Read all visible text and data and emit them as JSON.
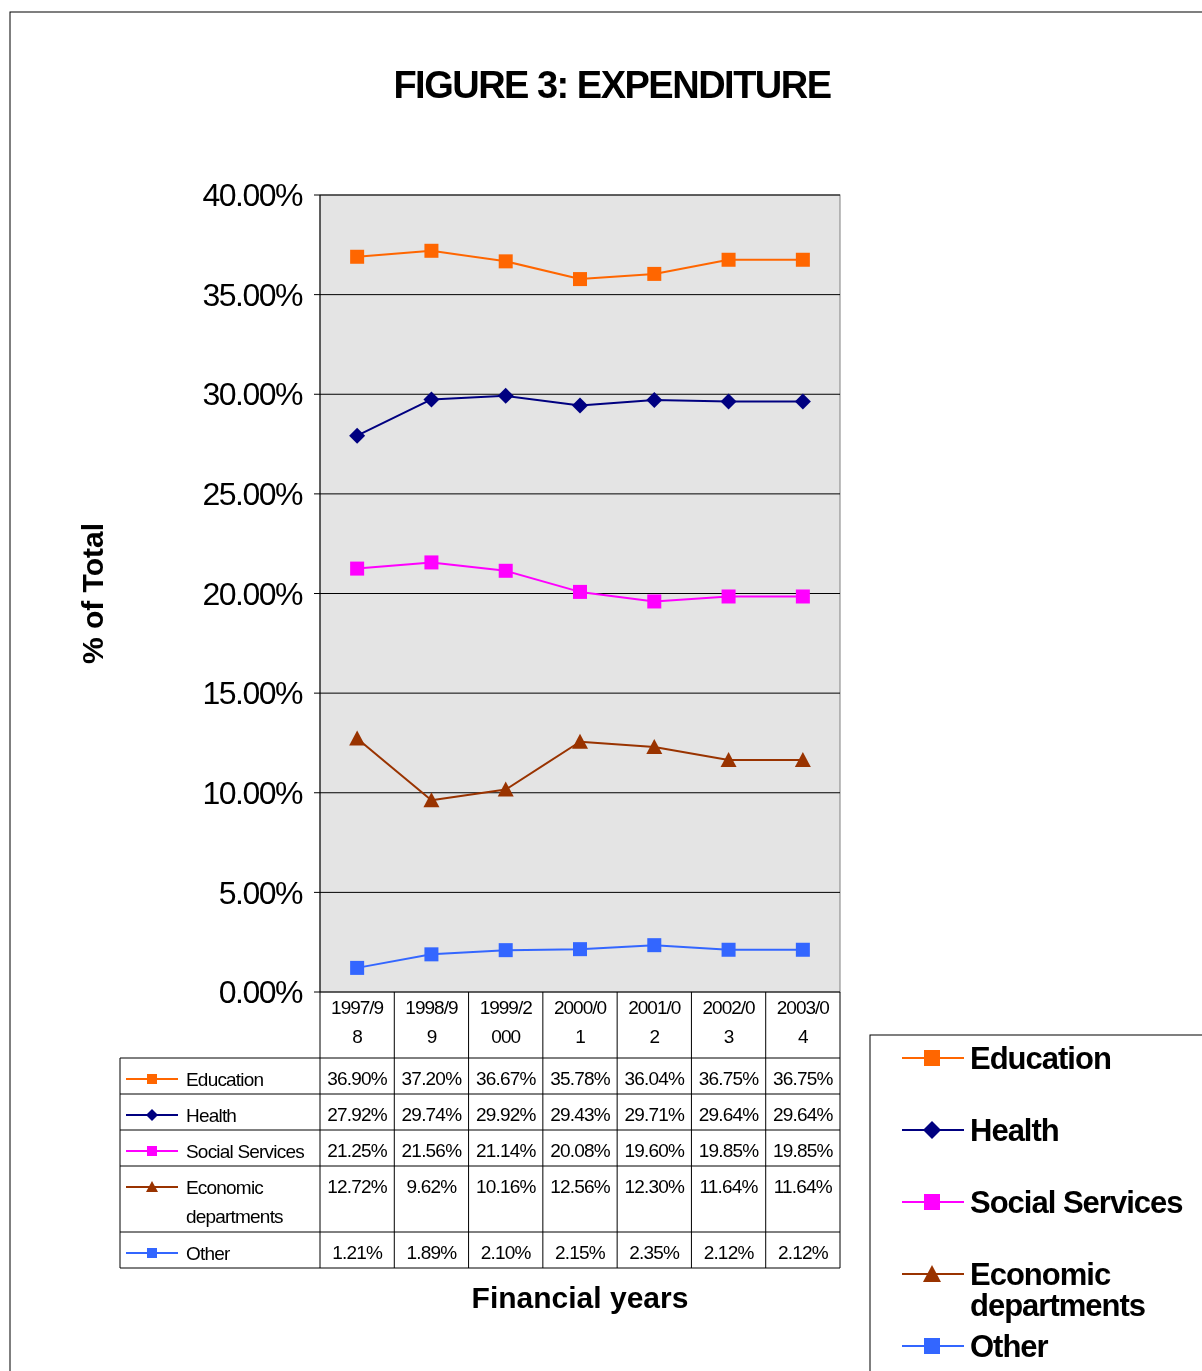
{
  "chart_data": {
    "type": "line",
    "title": "FIGURE 3:  EXPENDITURE",
    "annotations": [
      "Financial years"
    ],
    "ylabel": "% of Total",
    "categories": [
      "1997/98",
      "1998/99",
      "1999/2000",
      "2000/01",
      "2001/02",
      "2002/03",
      "2003/04"
    ],
    "series": [
      {
        "name": "Education",
        "color": "#ff6600",
        "marker": "square",
        "values": [
          36.9,
          37.2,
          36.67,
          35.78,
          36.04,
          36.75,
          36.75
        ],
        "value_labels": [
          "36.90%",
          "37.20%",
          "36.67%",
          "35.78%",
          "36.04%",
          "36.75%",
          "36.75%"
        ]
      },
      {
        "name": "Health",
        "color": "#000080",
        "marker": "diamond",
        "values": [
          27.92,
          29.74,
          29.92,
          29.43,
          29.71,
          29.64,
          29.64
        ],
        "value_labels": [
          "27.92%",
          "29.74%",
          "29.92%",
          "29.43%",
          "29.71%",
          "29.64%",
          "29.64%"
        ]
      },
      {
        "name": "Social Services",
        "color": "#ff00ff",
        "marker": "square",
        "values": [
          21.25,
          21.56,
          21.14,
          20.08,
          19.6,
          19.85,
          19.85
        ],
        "value_labels": [
          "21.25%",
          "21.56%",
          "21.14%",
          "20.08%",
          "19.60%",
          "19.85%",
          "19.85%"
        ]
      },
      {
        "name": "Economic departments",
        "color": "#993300",
        "marker": "triangle",
        "values": [
          12.72,
          9.62,
          10.16,
          12.56,
          12.3,
          11.64,
          11.64
        ],
        "value_labels": [
          "12.72%",
          "9.62%",
          "10.16%",
          "12.56%",
          "12.30%",
          "11.64%",
          "11.64%"
        ]
      },
      {
        "name": "Other",
        "color": "#3366ff",
        "marker": "square",
        "values": [
          1.21,
          1.89,
          2.1,
          2.15,
          2.35,
          2.12,
          2.12
        ],
        "value_labels": [
          "1.21%",
          "1.89%",
          "2.10%",
          "2.15%",
          "2.35%",
          "2.12%",
          "2.12%"
        ]
      }
    ],
    "ylim": [
      0,
      40
    ],
    "yticks": [
      {
        "value": 0,
        "label": "0.00%"
      },
      {
        "value": 5,
        "label": "5.00%"
      },
      {
        "value": 10,
        "label": "10.00%"
      },
      {
        "value": 15,
        "label": "15.00%"
      },
      {
        "value": 20,
        "label": "20.00%"
      },
      {
        "value": 25,
        "label": "25.00%"
      },
      {
        "value": 30,
        "label": "30.00%"
      },
      {
        "value": 35,
        "label": "35.00%"
      },
      {
        "value": 40,
        "label": "40.00%"
      }
    ],
    "grid": "y",
    "legend": "right",
    "line_style": "solid"
  }
}
